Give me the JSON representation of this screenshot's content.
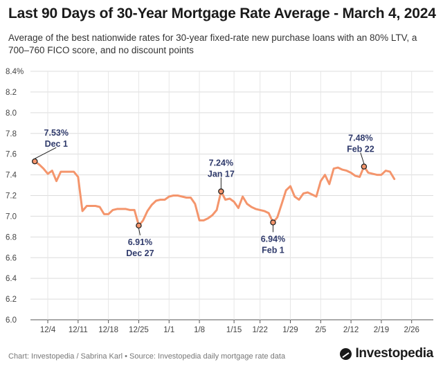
{
  "header": {
    "title": "Last 90 Days of 30-Year Mortgage Rate Average - March 4, 2024",
    "subtitle": "Average of the best nationwide rates for 30-year fixed-rate new purchase loans with an 80% LTV, a 700–760 FICO score, and no discount points"
  },
  "footer": {
    "credit": "Chart: Investopedia / Sabrina Karl • Source: Investopedia daily mortgage rate data",
    "logo_text": "Investopedia",
    "logo_icon": "investopedia-logo-icon"
  },
  "chart_data": {
    "type": "line",
    "x_start": "2023-11-30",
    "xlim_days": [
      0,
      93
    ],
    "ylim": [
      6.0,
      8.4
    ],
    "y_ticks": [
      6.0,
      6.2,
      6.4,
      6.6,
      6.8,
      7.0,
      7.2,
      7.4,
      7.6,
      7.8,
      8.0,
      8.2,
      8.4
    ],
    "y_tick_labels": [
      "6.0",
      "6.2",
      "6.4",
      "6.6",
      "6.8",
      "7.0",
      "7.2",
      "7.4",
      "7.6",
      "7.8",
      "8.0",
      "8.2",
      "8.4%"
    ],
    "x_ticks": [
      {
        "day": 4,
        "label": "12/4"
      },
      {
        "day": 11,
        "label": "12/11"
      },
      {
        "day": 18,
        "label": "12/18"
      },
      {
        "day": 25,
        "label": "12/25"
      },
      {
        "day": 32,
        "label": "1/1"
      },
      {
        "day": 39,
        "label": "1/8"
      },
      {
        "day": 47,
        "label": "1/15"
      },
      {
        "day": 53,
        "label": "1/22"
      },
      {
        "day": 60,
        "label": "1/29"
      },
      {
        "day": 67,
        "label": "2/5"
      },
      {
        "day": 74,
        "label": "2/12"
      },
      {
        "day": 81,
        "label": "2/19"
      },
      {
        "day": 88,
        "label": "2/26"
      }
    ],
    "grid": true,
    "line_color": "#f4956c",
    "series": [
      {
        "points": [
          [
            1,
            7.53
          ],
          [
            2,
            7.5
          ],
          [
            3,
            7.46
          ],
          [
            4,
            7.41
          ],
          [
            5,
            7.44
          ],
          [
            6,
            7.34
          ],
          [
            7,
            7.43
          ],
          [
            8,
            7.43
          ],
          [
            9,
            7.43
          ],
          [
            10,
            7.43
          ],
          [
            11,
            7.38
          ],
          [
            12,
            7.05
          ],
          [
            13,
            7.1
          ],
          [
            14,
            7.1
          ],
          [
            15,
            7.1
          ],
          [
            16,
            7.09
          ],
          [
            17,
            7.02
          ],
          [
            18,
            7.02
          ],
          [
            19,
            7.06
          ],
          [
            20,
            7.07
          ],
          [
            21,
            7.07
          ],
          [
            22,
            7.07
          ],
          [
            23,
            7.06
          ],
          [
            24,
            7.06
          ],
          [
            25,
            6.91
          ],
          [
            26,
            6.96
          ],
          [
            27,
            7.05
          ],
          [
            28,
            7.11
          ],
          [
            29,
            7.15
          ],
          [
            30,
            7.16
          ],
          [
            31,
            7.16
          ],
          [
            32,
            7.19
          ],
          [
            33,
            7.2
          ],
          [
            34,
            7.2
          ],
          [
            35,
            7.19
          ],
          [
            36,
            7.18
          ],
          [
            37,
            7.18
          ],
          [
            38,
            7.12
          ],
          [
            39,
            6.96
          ],
          [
            40,
            6.96
          ],
          [
            41,
            6.98
          ],
          [
            42,
            7.01
          ],
          [
            43,
            7.06
          ],
          [
            44,
            7.24
          ],
          [
            45,
            7.16
          ],
          [
            46,
            7.17
          ],
          [
            47,
            7.14
          ],
          [
            48,
            7.08
          ],
          [
            49,
            7.19
          ],
          [
            50,
            7.12
          ],
          [
            51,
            7.09
          ],
          [
            52,
            7.07
          ],
          [
            53,
            7.06
          ],
          [
            54,
            7.05
          ],
          [
            55,
            7.03
          ],
          [
            56,
            6.94
          ],
          [
            57,
            6.99
          ],
          [
            58,
            7.12
          ],
          [
            59,
            7.25
          ],
          [
            60,
            7.29
          ],
          [
            61,
            7.19
          ],
          [
            62,
            7.16
          ],
          [
            63,
            7.22
          ],
          [
            64,
            7.23
          ],
          [
            65,
            7.21
          ],
          [
            66,
            7.19
          ],
          [
            67,
            7.34
          ],
          [
            68,
            7.4
          ],
          [
            69,
            7.31
          ],
          [
            70,
            7.46
          ],
          [
            71,
            7.47
          ],
          [
            72,
            7.45
          ],
          [
            73,
            7.44
          ],
          [
            74,
            7.42
          ],
          [
            75,
            7.39
          ],
          [
            76,
            7.38
          ],
          [
            77,
            7.48
          ],
          [
            78,
            7.42
          ],
          [
            79,
            7.41
          ],
          [
            80,
            7.4
          ],
          [
            81,
            7.4
          ],
          [
            82,
            7.44
          ],
          [
            83,
            7.43
          ],
          [
            84,
            7.36
          ]
        ]
      }
    ],
    "annotations": [
      {
        "day": 1,
        "value": 7.53,
        "rate": "7.53%",
        "date": "Dec 1",
        "position": "above",
        "dx": 31,
        "dy": -26
      },
      {
        "day": 25,
        "value": 6.91,
        "rate": "6.91%",
        "date": "Dec 27",
        "position": "below",
        "dx": 2,
        "dy": 20
      },
      {
        "day": 44,
        "value": 7.24,
        "rate": "7.24%",
        "date": "Jan 17",
        "position": "above",
        "dx": 0,
        "dy": -26
      },
      {
        "day": 56,
        "value": 6.94,
        "rate": "6.94%",
        "date": "Feb 1",
        "position": "below",
        "dx": 0,
        "dy": 20
      },
      {
        "day": 77,
        "value": 7.48,
        "rate": "7.48%",
        "date": "Feb 22",
        "position": "above",
        "dx": -5,
        "dy": -26
      }
    ]
  }
}
